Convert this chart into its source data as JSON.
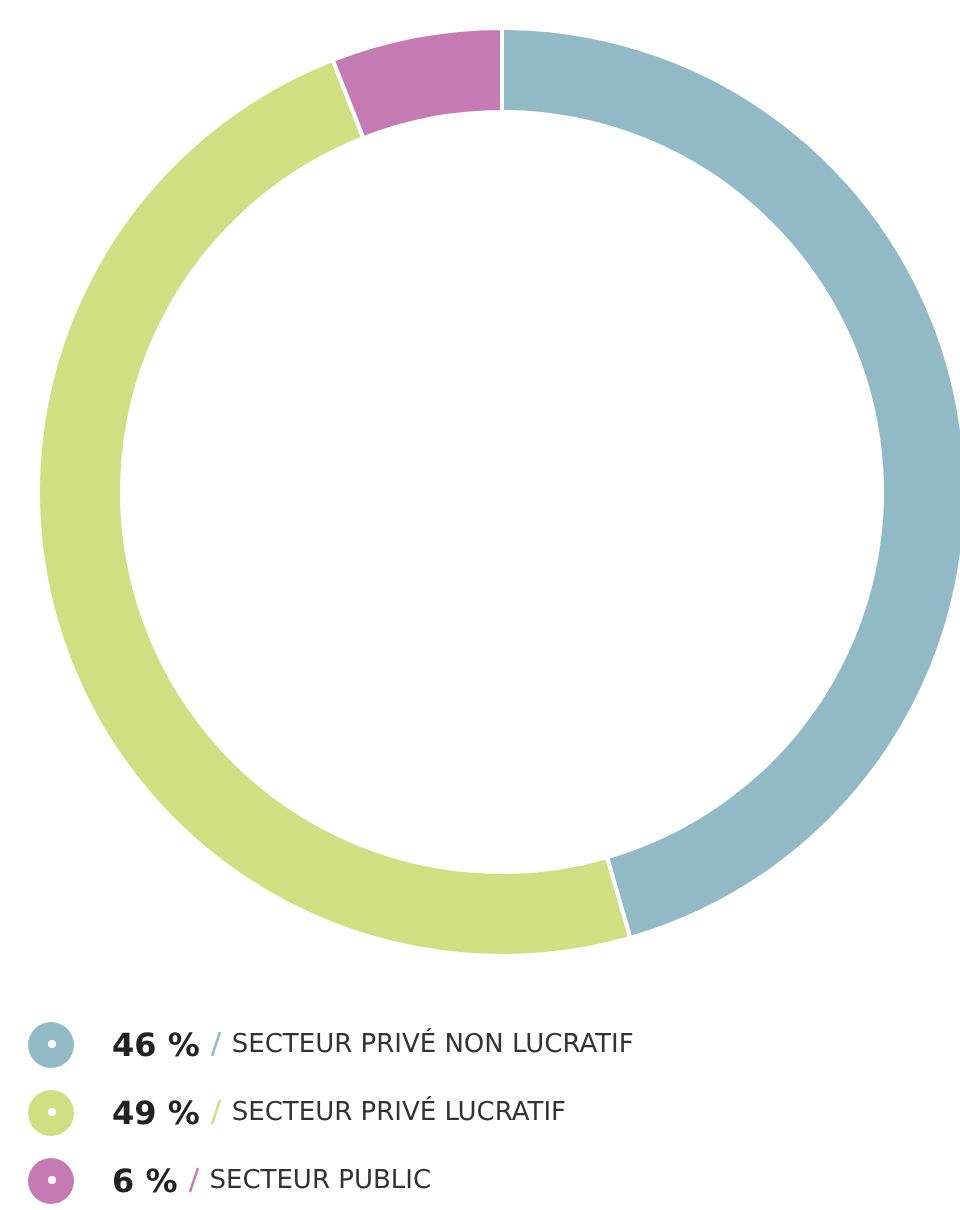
{
  "chart_data": {
    "type": "donut",
    "categories": [
      "SECTEUR PRIVÉ NON LUCRATIF",
      "SECTEUR PRIVÉ LUCRATIF",
      "SECTEUR PUBLIC"
    ],
    "values": [
      46,
      49,
      6
    ],
    "value_labels": [
      "46 %",
      "49 %",
      "6 %"
    ],
    "colors": [
      "#91b9c6",
      "#d0df82",
      "#c67ab3"
    ],
    "legend": "bottom"
  }
}
